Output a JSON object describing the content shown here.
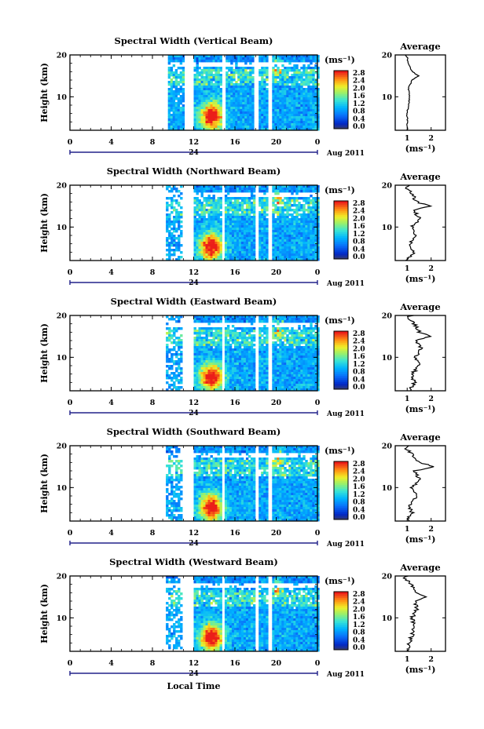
{
  "figure": {
    "xlabel": "Local Time",
    "date_label": "Aug 2011",
    "day_marker": "24",
    "unit_label": "(ms⁻¹)",
    "avg_title": "Average",
    "avg_xlabel": "(ms⁻¹)",
    "ylabel": "Height (km)",
    "colorbar_ticks": [
      "0.0",
      "0.4",
      "0.8",
      "1.2",
      "1.6",
      "2.0",
      "2.4",
      "2.8"
    ]
  },
  "chart_data": [
    {
      "type": "heatmap",
      "title": "Spectral Width (Vertical Beam)",
      "x_ticks": [
        "0",
        "4",
        "8",
        "12",
        "16",
        "20",
        "0"
      ],
      "y_ticks": [
        "20",
        "10"
      ],
      "xlim": [
        0,
        24
      ],
      "ylim": [
        2,
        20
      ],
      "data_segments_hours": [
        [
          9.5,
          11.0
        ],
        [
          12.0,
          14.6
        ],
        [
          15.1,
          17.8
        ],
        [
          18.3,
          19.2
        ],
        [
          19.6,
          24.0
        ]
      ],
      "colorbar_range": [
        0.0,
        2.8
      ],
      "avg_profile": {
        "x_ticks": [
          "1",
          "2"
        ],
        "xlim": [
          0.5,
          2.6
        ],
        "y_ticks": [
          "20",
          "10"
        ],
        "height_km": [
          2,
          4,
          6,
          8,
          10,
          12,
          14,
          15,
          16,
          18,
          19.5,
          20
        ],
        "width_ms": [
          1.0,
          1.0,
          1.0,
          1.05,
          1.1,
          1.05,
          1.2,
          1.5,
          1.2,
          1.05,
          1.0,
          0.9
        ]
      }
    },
    {
      "type": "heatmap",
      "title": "Spectral Width (Northward Beam)",
      "x_ticks": [
        "0",
        "4",
        "8",
        "12",
        "16",
        "20",
        "0"
      ],
      "y_ticks": [
        "20",
        "10"
      ],
      "xlim": [
        0,
        24
      ],
      "ylim": [
        2,
        20
      ],
      "data_segments_hours": [
        [
          9.3,
          10.8
        ],
        [
          12.0,
          14.6
        ],
        [
          15.0,
          17.8
        ],
        [
          18.3,
          19.2
        ],
        [
          19.6,
          24.0
        ]
      ],
      "colorbar_range": [
        0.0,
        2.8
      ],
      "avg_profile": {
        "x_ticks": [
          "1",
          "2"
        ],
        "xlim": [
          0.5,
          2.6
        ],
        "y_ticks": [
          "20",
          "10"
        ],
        "height_km": [
          2,
          4,
          6,
          8,
          10,
          12,
          14,
          15,
          16,
          18,
          19.5,
          20
        ],
        "width_ms": [
          1.0,
          1.3,
          1.1,
          1.4,
          1.2,
          1.5,
          1.3,
          1.9,
          1.4,
          1.2,
          0.9,
          1.1
        ]
      }
    },
    {
      "type": "heatmap",
      "title": "Spectral Width (Eastward Beam)",
      "x_ticks": [
        "0",
        "4",
        "8",
        "12",
        "16",
        "20",
        "0"
      ],
      "y_ticks": [
        "20",
        "10"
      ],
      "xlim": [
        0,
        24
      ],
      "ylim": [
        2,
        20
      ],
      "data_segments_hours": [
        [
          9.3,
          10.8
        ],
        [
          12.0,
          14.6
        ],
        [
          15.0,
          17.8
        ],
        [
          18.3,
          19.2
        ],
        [
          19.6,
          24.0
        ]
      ],
      "colorbar_range": [
        0.0,
        2.8
      ],
      "avg_profile": {
        "x_ticks": [
          "1",
          "2"
        ],
        "xlim": [
          0.5,
          2.6
        ],
        "y_ticks": [
          "20",
          "10"
        ],
        "height_km": [
          2,
          4,
          6,
          8,
          10,
          12,
          14,
          15,
          16,
          18,
          19.5,
          20
        ],
        "width_ms": [
          1.1,
          1.3,
          1.2,
          1.5,
          1.3,
          1.6,
          1.4,
          2.0,
          1.5,
          1.3,
          1.0,
          1.2
        ]
      }
    },
    {
      "type": "heatmap",
      "title": "Spectral Width (Southward Beam)",
      "x_ticks": [
        "0",
        "4",
        "8",
        "12",
        "16",
        "20",
        "0"
      ],
      "y_ticks": [
        "20",
        "10"
      ],
      "xlim": [
        0,
        24
      ],
      "ylim": [
        2,
        20
      ],
      "data_segments_hours": [
        [
          9.3,
          10.8
        ],
        [
          12.0,
          14.6
        ],
        [
          15.0,
          17.8
        ],
        [
          18.3,
          19.2
        ],
        [
          19.6,
          24.0
        ]
      ],
      "colorbar_range": [
        0.0,
        2.8
      ],
      "avg_profile": {
        "x_ticks": [
          "1",
          "2"
        ],
        "xlim": [
          0.5,
          2.6
        ],
        "y_ticks": [
          "20",
          "10"
        ],
        "height_km": [
          2,
          4,
          6,
          8,
          10,
          12,
          14,
          15,
          16,
          18,
          19.5,
          20
        ],
        "width_ms": [
          1.0,
          1.2,
          1.1,
          1.4,
          1.2,
          1.5,
          1.3,
          2.1,
          1.5,
          1.2,
          0.9,
          1.1
        ]
      }
    },
    {
      "type": "heatmap",
      "title": "Spectral Width (Westward Beam)",
      "x_ticks": [
        "0",
        "4",
        "8",
        "12",
        "16",
        "20",
        "0"
      ],
      "y_ticks": [
        "20",
        "10"
      ],
      "xlim": [
        0,
        24
      ],
      "ylim": [
        2,
        20
      ],
      "data_segments_hours": [
        [
          9.3,
          10.8
        ],
        [
          12.0,
          14.6
        ],
        [
          15.0,
          17.8
        ],
        [
          18.3,
          19.2
        ],
        [
          19.6,
          24.0
        ]
      ],
      "colorbar_range": [
        0.0,
        2.8
      ],
      "avg_profile": {
        "x_ticks": [
          "1",
          "2"
        ],
        "xlim": [
          0.5,
          2.6
        ],
        "y_ticks": [
          "20",
          "10"
        ],
        "height_km": [
          2,
          4,
          6,
          8,
          10,
          12,
          14,
          15,
          16,
          18,
          19.5,
          20
        ],
        "width_ms": [
          1.0,
          1.1,
          1.2,
          1.3,
          1.2,
          1.4,
          1.3,
          1.8,
          1.4,
          1.2,
          0.9,
          1.0
        ]
      }
    }
  ]
}
